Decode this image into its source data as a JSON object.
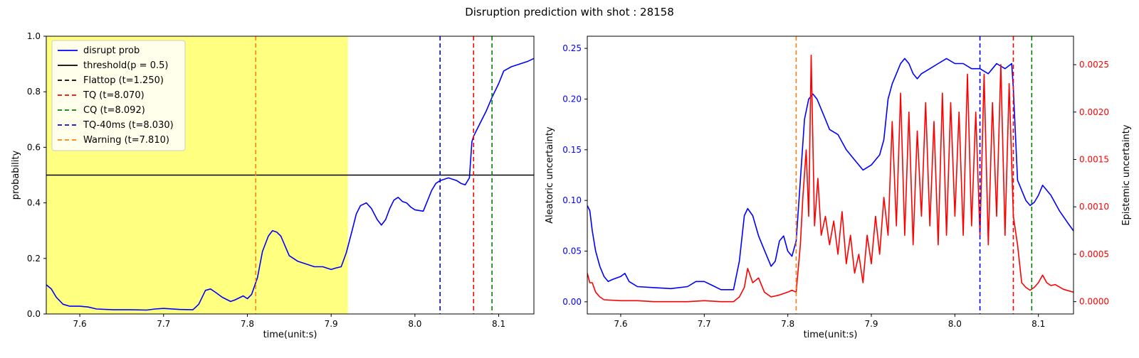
{
  "figure": {
    "title": "Disruption prediction with shot : 28158"
  },
  "chart_data": [
    {
      "type": "line",
      "xlabel": "time(unit:s)",
      "ylabel": "probability",
      "xlim": [
        7.56,
        8.142
      ],
      "ylim": [
        0,
        1
      ],
      "xticks": [
        7.6,
        7.7,
        7.8,
        7.9,
        8.0,
        8.1
      ],
      "xtick_labels": [
        "7.6",
        "7.7",
        "7.8",
        "7.9",
        "8.0",
        "8.1"
      ],
      "yticks": [
        0,
        0.2,
        0.4,
        0.6,
        0.8,
        1.0
      ],
      "ytick_labels": [
        "0.0",
        "0.2",
        "0.4",
        "0.6",
        "0.8",
        "1.0"
      ],
      "shaded_region": {
        "x0": 7.56,
        "x1": 7.92,
        "color": "#ffff80"
      },
      "series": [
        {
          "name": "disrupt prob",
          "color": "#0000ff",
          "x": [
            7.56,
            7.566,
            7.572,
            7.58,
            7.588,
            7.6,
            7.61,
            7.62,
            7.64,
            7.66,
            7.68,
            7.69,
            7.7,
            7.72,
            7.735,
            7.742,
            7.75,
            7.756,
            7.762,
            7.77,
            7.78,
            7.785,
            7.795,
            7.8,
            7.805,
            7.812,
            7.818,
            7.825,
            7.83,
            7.835,
            7.84,
            7.845,
            7.85,
            7.855,
            7.86,
            7.87,
            7.88,
            7.89,
            7.9,
            7.905,
            7.912,
            7.918,
            7.925,
            7.93,
            7.935,
            7.942,
            7.948,
            7.955,
            7.96,
            7.965,
            7.97,
            7.975,
            7.98,
            7.985,
            7.99,
            7.995,
            8.0,
            8.01,
            8.02,
            8.025,
            8.03,
            8.035,
            8.04,
            8.05,
            8.055,
            8.06,
            8.065,
            8.068,
            8.07,
            8.075,
            8.085,
            8.092,
            8.1,
            8.106,
            8.115,
            8.125,
            8.135,
            8.142
          ],
          "y": [
            0.105,
            0.09,
            0.06,
            0.035,
            0.028,
            0.028,
            0.025,
            0.018,
            0.015,
            0.015,
            0.014,
            0.018,
            0.02,
            0.016,
            0.015,
            0.035,
            0.085,
            0.09,
            0.078,
            0.06,
            0.045,
            0.05,
            0.065,
            0.055,
            0.07,
            0.13,
            0.225,
            0.28,
            0.3,
            0.295,
            0.28,
            0.245,
            0.21,
            0.2,
            0.19,
            0.18,
            0.17,
            0.17,
            0.16,
            0.165,
            0.17,
            0.22,
            0.3,
            0.36,
            0.39,
            0.4,
            0.38,
            0.34,
            0.32,
            0.34,
            0.38,
            0.41,
            0.42,
            0.405,
            0.4,
            0.385,
            0.375,
            0.37,
            0.445,
            0.47,
            0.48,
            0.485,
            0.49,
            0.48,
            0.47,
            0.465,
            0.49,
            0.62,
            0.64,
            0.67,
            0.73,
            0.78,
            0.83,
            0.875,
            0.89,
            0.9,
            0.91,
            0.92
          ]
        },
        {
          "name": "threshold(p = 0.5)",
          "color": "#000000",
          "type": "hline",
          "y": 0.5
        }
      ],
      "vlines": [
        {
          "name": "Flattop (t=1.250)",
          "x": 1.25,
          "color": "#000000"
        },
        {
          "name": "TQ (t=8.070)",
          "x": 8.07,
          "color": "#ff0000"
        },
        {
          "name": "CQ (t=8.092)",
          "x": 8.092,
          "color": "#008000"
        },
        {
          "name": "TQ-40ms (t=8.030)",
          "x": 8.03,
          "color": "#0000ff"
        },
        {
          "name": "Warning (t=7.810)",
          "x": 7.81,
          "color": "#ff7f0e"
        }
      ],
      "legend": {
        "placement": "upper-left",
        "entries": [
          "disrupt prob",
          "threshold(p = 0.5)",
          "Flattop (t=1.250)",
          "TQ (t=8.070)",
          "CQ (t=8.092)",
          "TQ-40ms (t=8.030)",
          "Warning (t=7.810)"
        ]
      }
    },
    {
      "type": "line",
      "xlabel": "time(unit:s)",
      "ylabel": "Aleatoric uncertainty",
      "y2label": "Epistemic uncertainty",
      "xlim": [
        7.56,
        8.142
      ],
      "ylim": [
        -0.012,
        0.262
      ],
      "y2lim": [
        -0.00013,
        0.0028
      ],
      "xticks": [
        7.6,
        7.7,
        7.8,
        7.9,
        8.0,
        8.1
      ],
      "xtick_labels": [
        "7.6",
        "7.7",
        "7.8",
        "7.9",
        "8.0",
        "8.1"
      ],
      "yticks": [
        0,
        0.05,
        0.1,
        0.15,
        0.2,
        0.25
      ],
      "ytick_labels": [
        "0.00",
        "0.05",
        "0.10",
        "0.15",
        "0.20",
        "0.25"
      ],
      "y2ticks": [
        0,
        0.0005,
        0.001,
        0.0015,
        0.002,
        0.0025
      ],
      "y2tick_labels": [
        "0.0000",
        "0.0005",
        "0.0010",
        "0.0015",
        "0.0020",
        "0.0025"
      ],
      "series": [
        {
          "name": "Aleatoric uncertainty",
          "axis": "left",
          "color": "#0000ff",
          "x": [
            7.56,
            7.563,
            7.566,
            7.57,
            7.575,
            7.58,
            7.585,
            7.59,
            7.6,
            7.605,
            7.61,
            7.62,
            7.64,
            7.66,
            7.68,
            7.69,
            7.7,
            7.71,
            7.72,
            7.735,
            7.742,
            7.748,
            7.752,
            7.758,
            7.765,
            7.77,
            7.775,
            7.78,
            7.785,
            7.79,
            7.795,
            7.8,
            7.805,
            7.81,
            7.815,
            7.82,
            7.825,
            7.83,
            7.835,
            7.84,
            7.845,
            7.85,
            7.86,
            7.87,
            7.88,
            7.89,
            7.9,
            7.91,
            7.915,
            7.92,
            7.925,
            7.93,
            7.935,
            7.94,
            7.945,
            7.95,
            7.955,
            7.96,
            7.97,
            7.98,
            7.99,
            8.0,
            8.01,
            8.02,
            8.03,
            8.04,
            8.05,
            8.06,
            8.068,
            8.07,
            8.075,
            8.08,
            8.085,
            8.09,
            8.095,
            8.1,
            8.105,
            8.115,
            8.125,
            8.135,
            8.142
          ],
          "y": [
            0.095,
            0.09,
            0.07,
            0.05,
            0.035,
            0.025,
            0.02,
            0.022,
            0.025,
            0.028,
            0.02,
            0.015,
            0.014,
            0.013,
            0.015,
            0.02,
            0.02,
            0.016,
            0.012,
            0.012,
            0.04,
            0.085,
            0.092,
            0.085,
            0.065,
            0.055,
            0.045,
            0.035,
            0.04,
            0.06,
            0.065,
            0.05,
            0.045,
            0.06,
            0.12,
            0.18,
            0.2,
            0.205,
            0.2,
            0.19,
            0.18,
            0.17,
            0.165,
            0.15,
            0.14,
            0.13,
            0.135,
            0.145,
            0.16,
            0.2,
            0.215,
            0.225,
            0.235,
            0.24,
            0.235,
            0.225,
            0.22,
            0.225,
            0.23,
            0.235,
            0.24,
            0.235,
            0.235,
            0.23,
            0.23,
            0.225,
            0.235,
            0.23,
            0.235,
            0.21,
            0.12,
            0.11,
            0.1,
            0.095,
            0.098,
            0.105,
            0.115,
            0.105,
            0.09,
            0.078,
            0.07
          ]
        },
        {
          "name": "Epistemic uncertainty",
          "axis": "right",
          "color": "#ff0000",
          "x": [
            7.56,
            7.563,
            7.566,
            7.57,
            7.575,
            7.58,
            7.6,
            7.62,
            7.64,
            7.66,
            7.68,
            7.7,
            7.72,
            7.735,
            7.742,
            7.748,
            7.752,
            7.758,
            7.765,
            7.772,
            7.78,
            7.79,
            7.8,
            7.805,
            7.81,
            7.815,
            7.818,
            7.822,
            7.825,
            7.828,
            7.832,
            7.836,
            7.84,
            7.845,
            7.85,
            7.855,
            7.86,
            7.865,
            7.87,
            7.875,
            7.88,
            7.885,
            7.89,
            7.895,
            7.9,
            7.905,
            7.91,
            7.915,
            7.92,
            7.925,
            7.93,
            7.935,
            7.94,
            7.945,
            7.95,
            7.955,
            7.96,
            7.965,
            7.97,
            7.975,
            7.98,
            7.985,
            7.99,
            7.995,
            8.0,
            8.005,
            8.01,
            8.015,
            8.02,
            8.025,
            8.03,
            8.035,
            8.04,
            8.045,
            8.05,
            8.055,
            8.06,
            8.065,
            8.07,
            8.075,
            8.08,
            8.085,
            8.09,
            8.095,
            8.1,
            8.105,
            8.11,
            8.115,
            8.12,
            8.13,
            8.142
          ],
          "y": [
            0.0003,
            0.0002,
            0.0002,
            0.0001,
            5e-05,
            2e-05,
            1e-05,
            1e-05,
            0.0,
            0.0,
            0.0,
            1e-05,
            0.0,
            0.0,
            5e-05,
            0.00015,
            0.00035,
            0.0002,
            0.00025,
            0.0001,
            5e-05,
            7e-05,
            0.0001,
            0.00012,
            0.0001,
            0.0006,
            0.0011,
            0.0016,
            0.0009,
            0.0026,
            0.0008,
            0.0013,
            0.0007,
            0.0009,
            0.0006,
            0.00085,
            0.0005,
            0.00095,
            0.0004,
            0.0007,
            0.0003,
            0.0005,
            0.0002,
            0.0007,
            0.0004,
            0.0009,
            0.0005,
            0.0011,
            0.0007,
            0.0019,
            0.0008,
            0.0022,
            0.0007,
            0.002,
            0.0006,
            0.0018,
            0.0009,
            0.0021,
            0.0008,
            0.0019,
            0.0006,
            0.0022,
            0.0007,
            0.0021,
            0.0009,
            0.002,
            0.0007,
            0.0024,
            0.0008,
            0.002,
            0.0007,
            0.0024,
            0.0006,
            0.0021,
            0.0009,
            0.0025,
            0.0007,
            0.0023,
            0.0009,
            0.0006,
            0.0002,
            0.00015,
            0.00012,
            0.00015,
            0.0002,
            0.00028,
            0.0002,
            0.00017,
            0.00018,
            0.00013,
            0.0001
          ]
        }
      ],
      "vlines": [
        {
          "name": "TQ",
          "x": 8.07,
          "color": "#ff0000"
        },
        {
          "name": "CQ",
          "x": 8.092,
          "color": "#008000"
        },
        {
          "name": "TQ-40ms",
          "x": 8.03,
          "color": "#0000ff"
        },
        {
          "name": "Warning",
          "x": 7.81,
          "color": "#ff7f0e"
        }
      ],
      "y2_tick_color": "#ff0000",
      "y_tick_color": "#0000ff"
    }
  ]
}
